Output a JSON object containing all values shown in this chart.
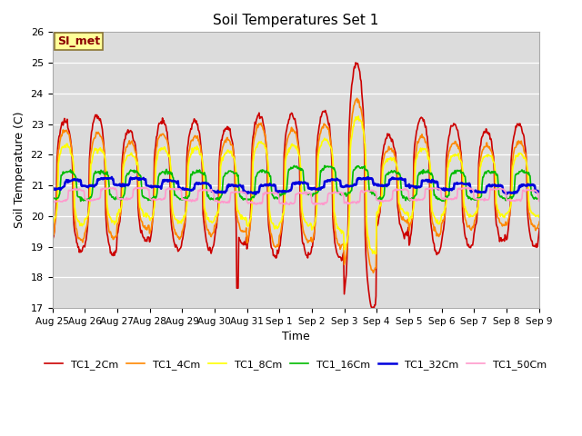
{
  "title": "Soil Temperatures Set 1",
  "xlabel": "Time",
  "ylabel": "Soil Temperature (C)",
  "ylim": [
    17.0,
    26.0
  ],
  "yticks": [
    17.0,
    18.0,
    19.0,
    20.0,
    21.0,
    22.0,
    23.0,
    24.0,
    25.0,
    26.0
  ],
  "bg_color": "#dcdcdc",
  "fig_color": "#ffffff",
  "annotation_text": "SI_met",
  "annotation_bg": "#ffff99",
  "annotation_border": "#8b7536",
  "series_colors": {
    "TC1_2Cm": "#cc0000",
    "TC1_4Cm": "#ff8800",
    "TC1_8Cm": "#ffff00",
    "TC1_16Cm": "#00bb00",
    "TC1_32Cm": "#0000dd",
    "TC1_50Cm": "#ff99cc"
  },
  "series_linewidths": {
    "TC1_2Cm": 1.2,
    "TC1_4Cm": 1.2,
    "TC1_8Cm": 1.2,
    "TC1_16Cm": 1.2,
    "TC1_32Cm": 1.8,
    "TC1_50Cm": 1.2
  },
  "n_days": 16,
  "points_per_day": 48,
  "base_temp": 21.0,
  "xtick_labels": [
    "Aug 25",
    "Aug 26",
    "Aug 27",
    "Aug 28",
    "Aug 29",
    "Aug 30",
    "Aug 31",
    "Sep 1",
    "Sep 2",
    "Sep 3",
    "Sep 4",
    "Sep 5",
    "Sep 6",
    "Sep 7",
    "Sep 8",
    "Sep 9"
  ],
  "legend_entries": [
    "TC1_2Cm",
    "TC1_4Cm",
    "TC1_8Cm",
    "TC1_16Cm",
    "TC1_32Cm",
    "TC1_50Cm"
  ]
}
